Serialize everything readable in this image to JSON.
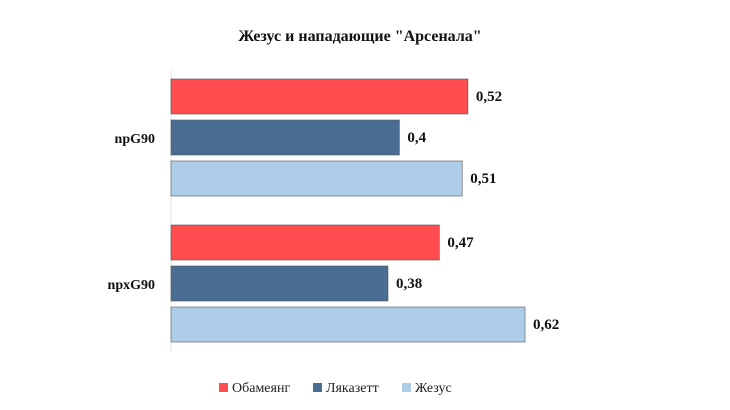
{
  "chart_data": {
    "type": "bar",
    "orientation": "horizontal",
    "title": "Жезус и нападающие \"Арсенала\"",
    "categories": [
      "npG90",
      "npxG90"
    ],
    "series": [
      {
        "name": "Обамеянг",
        "color": "#ff4d4f",
        "values": [
          0.52,
          0.47
        ]
      },
      {
        "name": "Ляказетт",
        "color": "#4a6e93",
        "values": [
          0.4,
          0.38
        ]
      },
      {
        "name": "Жезус",
        "color": "#aecde8",
        "values": [
          0.51,
          0.62
        ]
      }
    ],
    "value_labels": [
      [
        "0,52",
        "0,47"
      ],
      [
        "0,4",
        "0,38"
      ],
      [
        "0,51",
        "0,62"
      ]
    ],
    "xlim": [
      0,
      0.62
    ],
    "grid": false,
    "legend_position": "bottom"
  }
}
